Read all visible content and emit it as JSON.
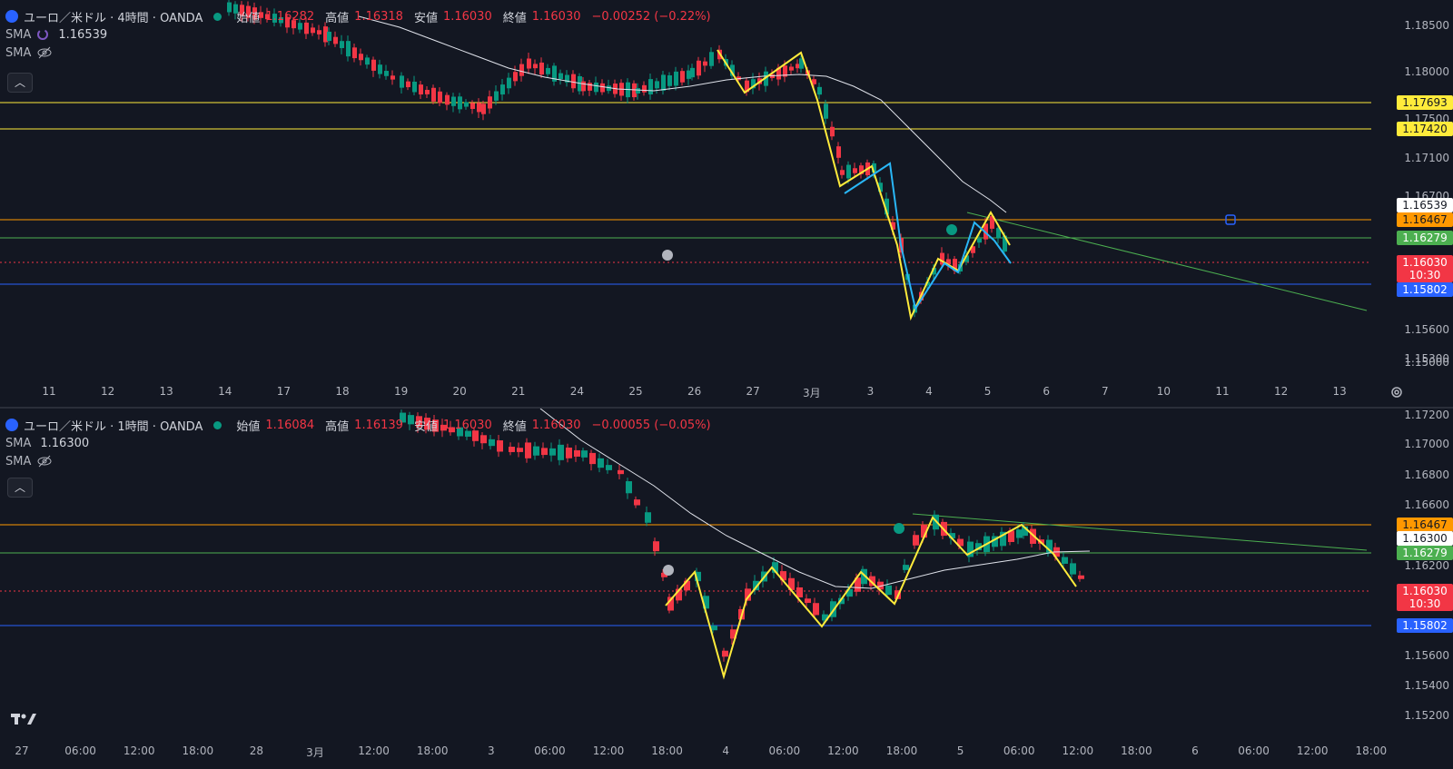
{
  "pane1": {
    "symbol": "ユーロ／米ドル · 4時間 · OANDA",
    "ohlc": {
      "o_label": "始値",
      "o": "1.16282",
      "h_label": "高値",
      "h": "1.16318",
      "l_label": "安値",
      "l": "1.16030",
      "c_label": "終値",
      "c": "1.16030",
      "chg": "−0.00252 (−0.22%)"
    },
    "sma1": {
      "name": "SMA",
      "value": "1.16539"
    },
    "sma2": {
      "name": "SMA"
    },
    "collapse_icon": "chevron-up",
    "price_labels": [
      "1.18500",
      "1.18000",
      "1.17500",
      "1.17100",
      "1.16700",
      "1.15600",
      "1.15300",
      "1.15000"
    ],
    "tags": {
      "yellow1": "1.17693",
      "yellow2": "1.17420",
      "white": "1.16539",
      "orange": "1.16467",
      "green": "1.16279",
      "red": "1.16030",
      "red_time": "10:30",
      "blue": "1.15802"
    },
    "xaxis": [
      "11",
      "12",
      "13",
      "14",
      "17",
      "18",
      "19",
      "20",
      "21",
      "24",
      "25",
      "26",
      "27",
      "3月",
      "3",
      "4",
      "5",
      "6",
      "7",
      "10",
      "11",
      "12",
      "13"
    ]
  },
  "pane2": {
    "symbol": "ユーロ／米ドル · 1時間 · OANDA",
    "ohlc": {
      "o_label": "始値",
      "o": "1.16084",
      "h_label": "高値",
      "h": "1.16139",
      "l_label": "安値",
      "l": "1.16030",
      "c_label": "終値",
      "c": "1.16030",
      "chg": "−0.00055 (−0.05%)"
    },
    "sma1": {
      "name": "SMA",
      "value": "1.16300"
    },
    "sma2": {
      "name": "SMA"
    },
    "collapse_icon": "chevron-up",
    "price_labels": [
      "1.17200",
      "1.17000",
      "1.16800",
      "1.16600",
      "1.16200",
      "1.15600",
      "1.15400",
      "1.15200"
    ],
    "tags": {
      "orange": "1.16467",
      "white": "1.16300",
      "green": "1.16279",
      "red": "1.16030",
      "red_time": "10:30",
      "blue": "1.15802"
    },
    "xaxis": [
      "27",
      "06:00",
      "12:00",
      "18:00",
      "28",
      "3月",
      "12:00",
      "18:00",
      "3",
      "06:00",
      "12:00",
      "18:00",
      "4",
      "06:00",
      "12:00",
      "18:00",
      "5",
      "06:00",
      "12:00",
      "18:00",
      "6",
      "06:00",
      "12:00",
      "18:00"
    ]
  },
  "colors": {
    "bg": "#131722",
    "up": "#089981",
    "down": "#f23645",
    "yellow": "#ffeb3b",
    "orange": "#ff9800",
    "green": "#4caf50",
    "blue": "#2962ff",
    "cyan": "#29b6f6",
    "red_dotted": "#f23645"
  },
  "icons": {
    "settings": "gear-icon",
    "logo": "tradingview-logo",
    "alert": "clock-alert-icon"
  }
}
